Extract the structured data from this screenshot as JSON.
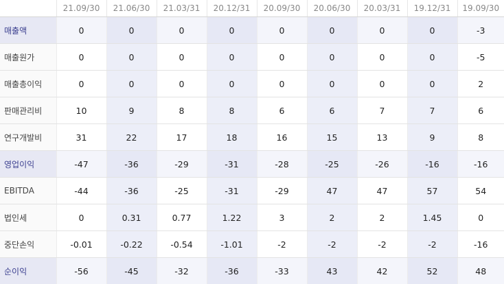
{
  "columns": [
    "21.09/30",
    "21.06/30",
    "21.03/31",
    "20.12/31",
    "20.09/30",
    "20.06/30",
    "20.03/31",
    "19.12/31",
    "19.09/30"
  ],
  "shaded_columns": [
    1,
    3,
    5,
    7
  ],
  "rows": [
    {
      "label": "매출액",
      "highlight": true,
      "values": [
        "0",
        "0",
        "0",
        "0",
        "0",
        "0",
        "0",
        "0",
        "-3"
      ]
    },
    {
      "label": "매출원가",
      "highlight": false,
      "values": [
        "0",
        "0",
        "0",
        "0",
        "0",
        "0",
        "0",
        "0",
        "-5"
      ]
    },
    {
      "label": "매출총이익",
      "highlight": false,
      "values": [
        "0",
        "0",
        "0",
        "0",
        "0",
        "0",
        "0",
        "0",
        "2"
      ]
    },
    {
      "label": "판매관리비",
      "highlight": false,
      "values": [
        "10",
        "9",
        "8",
        "8",
        "6",
        "6",
        "7",
        "7",
        "6"
      ]
    },
    {
      "label": "연구개발비",
      "highlight": false,
      "values": [
        "31",
        "22",
        "17",
        "18",
        "16",
        "15",
        "13",
        "9",
        "8"
      ]
    },
    {
      "label": "영업이익",
      "highlight": true,
      "values": [
        "-47",
        "-36",
        "-29",
        "-31",
        "-28",
        "-25",
        "-26",
        "-16",
        "-16"
      ]
    },
    {
      "label": "EBITDA",
      "highlight": false,
      "values": [
        "-44",
        "-36",
        "-25",
        "-31",
        "-29",
        "47",
        "47",
        "57",
        "54"
      ]
    },
    {
      "label": "법인세",
      "highlight": false,
      "values": [
        "0",
        "0.31",
        "0.77",
        "1.22",
        "3",
        "2",
        "2",
        "1.45",
        "0"
      ]
    },
    {
      "label": "중단손익",
      "highlight": false,
      "values": [
        "-0.01",
        "-0.22",
        "-0.54",
        "-1.01",
        "-2",
        "-2",
        "-2",
        "-2",
        "-16"
      ]
    },
    {
      "label": "순이익",
      "highlight": true,
      "values": [
        "-56",
        "-45",
        "-32",
        "-36",
        "-33",
        "43",
        "42",
        "52",
        "48"
      ]
    }
  ]
}
